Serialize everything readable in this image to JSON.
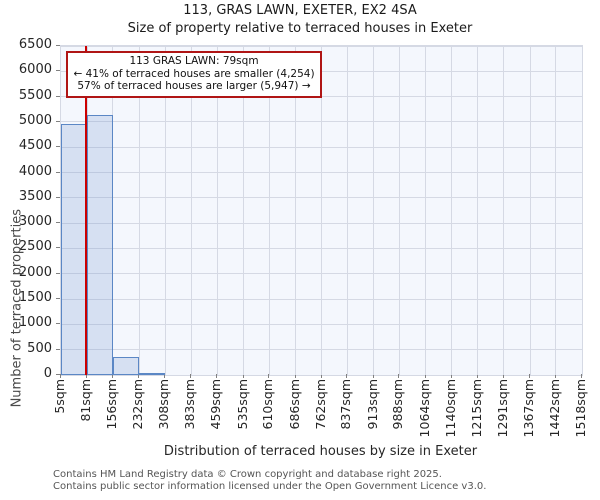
{
  "title": "113, GRAS LAWN, EXETER, EX2 4SA",
  "subtitle": "Size of property relative to terraced houses in Exeter",
  "annotation": {
    "line1": "113 GRAS LAWN: 79sqm",
    "line2": "← 41% of terraced houses are smaller (4,254)",
    "line3": "57% of terraced houses are larger (5,947) →"
  },
  "y_axis": {
    "label": "Number of terraced properties"
  },
  "x_axis": {
    "label": "Distribution of terraced houses by size in Exeter"
  },
  "footer": {
    "line1": "Contains HM Land Registry data © Crown copyright and database right 2025.",
    "line2": "Contains public sector information licensed under the Open Government Licence v3.0."
  },
  "colors": {
    "bar_fill": "#6e91cb38",
    "bar_edge": "#5b87c5",
    "marker_line": "#cc0000",
    "annotation_border": "#b01515",
    "plot_background": "#f4f7fd",
    "gridline": "#d5d9e4"
  },
  "chart_data": {
    "type": "bar",
    "title": "113, GRAS LAWN, EXETER, EX2 4SA",
    "subtitle": "Size of property relative to terraced houses in Exeter",
    "xlabel": "Distribution of terraced houses by size in Exeter",
    "ylabel": "Number of terraced properties",
    "bin_edges": [
      5,
      81,
      156,
      232,
      308,
      383,
      459,
      535,
      610,
      686,
      762,
      837,
      913,
      988,
      1064,
      1140,
      1215,
      1291,
      1367,
      1442,
      1518
    ],
    "x_tick_labels": [
      "5sqm",
      "81sqm",
      "156sqm",
      "232sqm",
      "308sqm",
      "383sqm",
      "459sqm",
      "535sqm",
      "610sqm",
      "686sqm",
      "762sqm",
      "837sqm",
      "913sqm",
      "988sqm",
      "1064sqm",
      "1140sqm",
      "1215sqm",
      "1291sqm",
      "1367sqm",
      "1442sqm",
      "1518sqm"
    ],
    "values": [
      4950,
      5130,
      365,
      25,
      0,
      0,
      0,
      0,
      0,
      0,
      0,
      0,
      0,
      0,
      0,
      0,
      0,
      0,
      0,
      0
    ],
    "y_ticks": [
      0,
      500,
      1000,
      1500,
      2000,
      2500,
      3000,
      3500,
      4000,
      4500,
      5000,
      5500,
      6000,
      6500
    ],
    "ylim": [
      0,
      6500
    ],
    "xlim": [
      5,
      1518
    ],
    "marker_value": 79,
    "grid": true,
    "legend": false,
    "smaller_count": 4254,
    "smaller_pct": 41,
    "larger_count": 5947,
    "larger_pct": 57
  }
}
